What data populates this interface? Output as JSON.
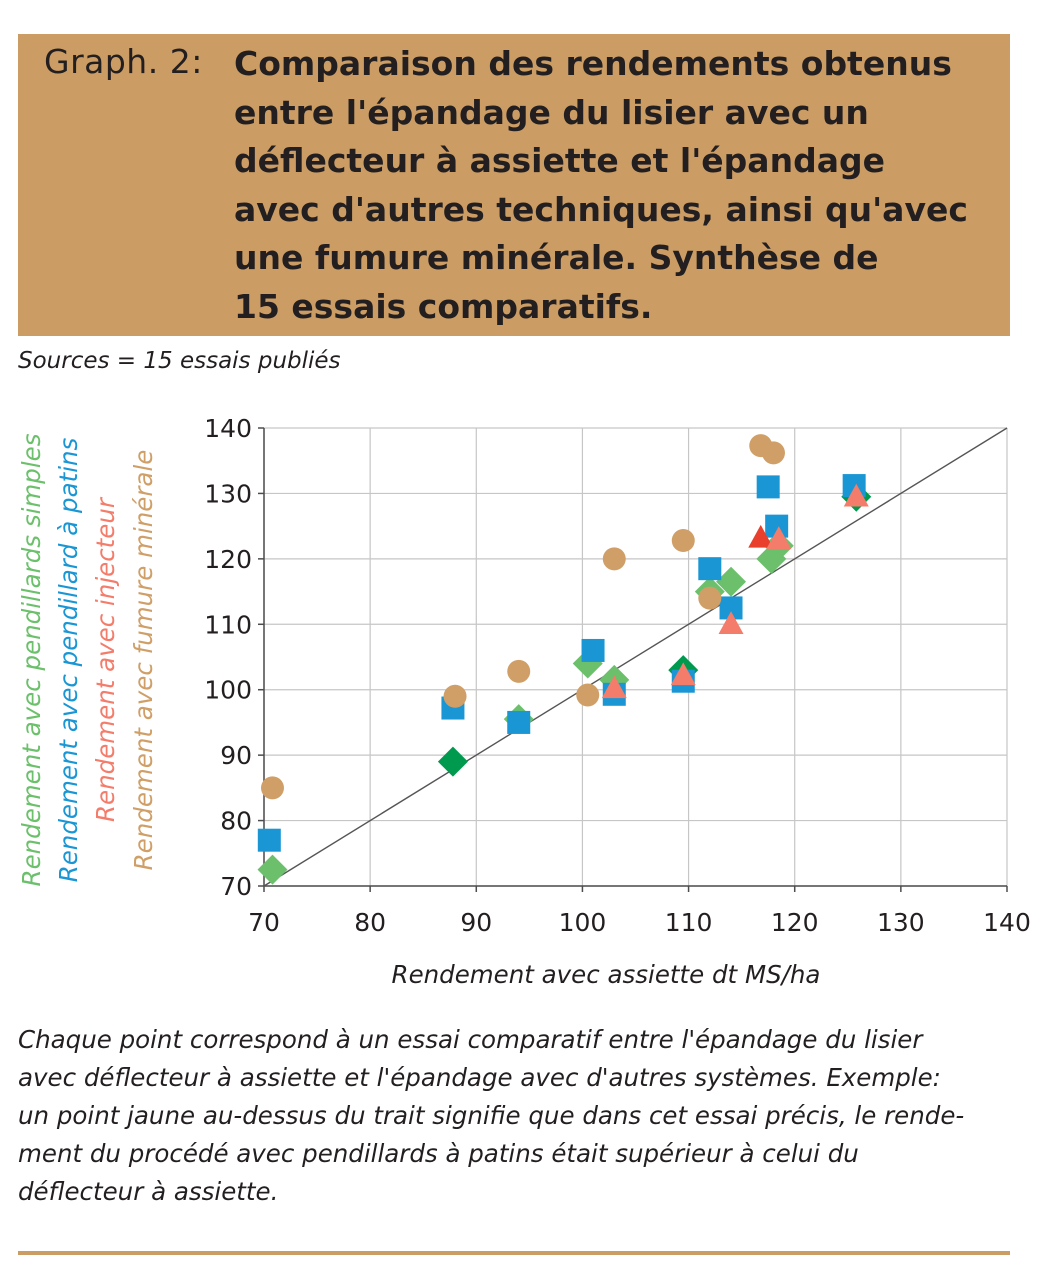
{
  "header": {
    "label": "Graph. 2:",
    "title_lines": [
      "Comparaison des rendements obtenus",
      "entre l'épandage du lisier avec un",
      "déflecteur à assiette et l'épandage",
      "avec d'autres techniques, ainsi qu'avec",
      "une fumure minérale. Synthèse de",
      "15 essais comparatifs."
    ]
  },
  "sources": "Sources = 15 essais publiés",
  "caption_lines": [
    "Chaque point correspond à un essai comparatif entre l'épandage du lisier",
    "avec déflecteur à assiette et l'épandage avec d'autres systèmes. Exemple:",
    "un point jaune au-dessus du trait signifie que dans cet essai précis, le rende-",
    "ment du procédé avec pendillards à patins était supérieur à celui du",
    "déflecteur à assiette."
  ],
  "colors": {
    "header_bg": "#cb9d65",
    "pendillards_simples_light": "#6cc06c",
    "pendillards_simples_dark": "#009a4e",
    "pendillard_patins": "#1a96d4",
    "injecteur_light": "#f47c6a",
    "injecteur_dark": "#e8402c",
    "fumure_minerale": "#cf9f67"
  },
  "chart_data": {
    "type": "scatter",
    "xlabel": "Rendement avec assiette dt MS/ha",
    "ylabel_lines": [
      {
        "prefix": "Rendement avec ",
        "suffix": "pendillards simples",
        "color": "#6cc06c"
      },
      {
        "prefix": "Rendement avec ",
        "suffix": "pendillard à patins",
        "color": "#1a96d4"
      },
      {
        "prefix": "Rendement avec ",
        "suffix": "injecteur",
        "color": "#f47c6a"
      },
      {
        "prefix": "Rendement avec ",
        "suffix": "fumure minérale",
        "color": "#cf9f67"
      }
    ],
    "xlim": [
      70,
      140
    ],
    "ylim": [
      70,
      140
    ],
    "xticks": [
      70,
      80,
      90,
      100,
      110,
      120,
      130,
      140
    ],
    "yticks": [
      70,
      80,
      90,
      100,
      110,
      120,
      130,
      140
    ],
    "grid": true,
    "reference_line": {
      "from": [
        70,
        70
      ],
      "to": [
        140,
        140
      ]
    },
    "series": [
      {
        "marker": "diamond",
        "color": "#6cc06c",
        "points": [
          [
            70.8,
            72.5
          ],
          [
            94,
            95.5
          ],
          [
            100.5,
            104
          ],
          [
            103,
            101.5
          ],
          [
            112,
            115
          ],
          [
            114,
            116.5
          ],
          [
            117.8,
            120
          ],
          [
            118.5,
            122
          ]
        ]
      },
      {
        "marker": "diamond",
        "color": "#009a4e",
        "points": [
          [
            87.8,
            89
          ],
          [
            109.5,
            103
          ],
          [
            125.8,
            129.5
          ]
        ]
      },
      {
        "marker": "square",
        "color": "#1a96d4",
        "points": [
          [
            70.5,
            77
          ],
          [
            87.8,
            97.2
          ],
          [
            94,
            95
          ],
          [
            101,
            106
          ],
          [
            103,
            99.3
          ],
          [
            109.5,
            101.3
          ],
          [
            112,
            118.5
          ],
          [
            114,
            112.5
          ],
          [
            117.5,
            131
          ],
          [
            118.3,
            125
          ],
          [
            125.6,
            131.2
          ]
        ]
      },
      {
        "marker": "triangle",
        "color": "#e8402c",
        "points": [
          [
            116.8,
            123.2
          ]
        ]
      },
      {
        "marker": "triangle",
        "color": "#f47c6a",
        "points": [
          [
            103,
            100.2
          ],
          [
            109.5,
            102.2
          ],
          [
            114,
            110
          ],
          [
            118.5,
            123
          ],
          [
            125.8,
            129.5
          ]
        ]
      },
      {
        "marker": "circle",
        "color": "#cf9f67",
        "points": [
          [
            70.8,
            85
          ],
          [
            88,
            99
          ],
          [
            94,
            102.8
          ],
          [
            100.5,
            99.2
          ],
          [
            103,
            120
          ],
          [
            109.5,
            122.8
          ],
          [
            112,
            114
          ],
          [
            116.8,
            137.3
          ],
          [
            118,
            136.2
          ]
        ]
      }
    ]
  }
}
